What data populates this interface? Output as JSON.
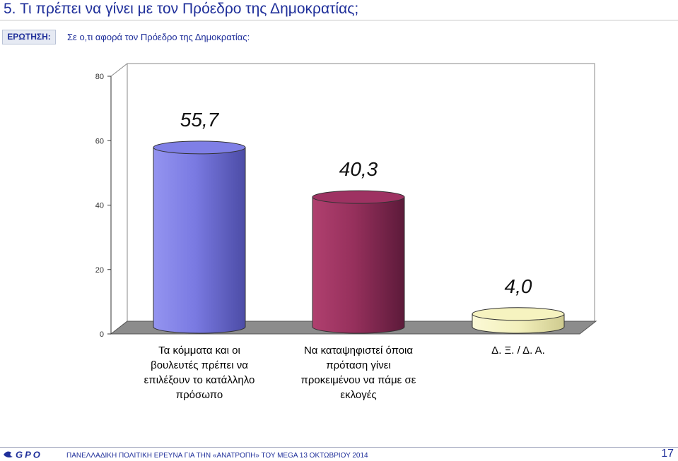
{
  "header": {
    "title": "5.   Τι πρέπει να γίνει με τον Πρόεδρο της Δημοκρατίας;",
    "question_label": "ΕΡΩΤΗΣΗ:",
    "question_text": "Σε ο,τι αφορά τον Πρόεδρο της Δημοκρατίας:"
  },
  "chart_data": {
    "type": "bar",
    "style": "3d-cylinder",
    "title": "",
    "xlabel": "",
    "ylabel": "",
    "ylim": [
      0,
      80
    ],
    "yticks": [
      "0",
      "20",
      "40",
      "60",
      "80"
    ],
    "grid": false,
    "legend": "none",
    "categories": [
      [
        "Τα κόμματα και οι",
        "βουλευτές πρέπει να",
        "επιλέξουν το κατάλληλο",
        "πρόσωπο"
      ],
      [
        "Να καταψηφιστεί όποια",
        "πρόταση γίνει",
        "προκειμένου να πάμε σε",
        "εκλογές"
      ],
      [
        "Δ. Ξ. / Δ. Α."
      ]
    ],
    "values": [
      55.7,
      40.3,
      4.0
    ],
    "data_labels": [
      "55,7",
      "40,3",
      "4,0"
    ],
    "colors": [
      "#7f7fe6",
      "#9e3262",
      "#f6f3c0"
    ]
  },
  "footer": {
    "logo_text": "GPO",
    "text": "ΠΑΝΕΛΛΑΔΙΚΗ ΠΟΛΙΤΙΚΗ ΕΡΕΥΝΑ ΓΙΑ ΤΗΝ «ΑΝΑΤΡΟΠΗ» ΤΟΥ MEGA  13  ΟΚΤΩΒΡΙΟΥ  2014",
    "page_number": "17"
  }
}
